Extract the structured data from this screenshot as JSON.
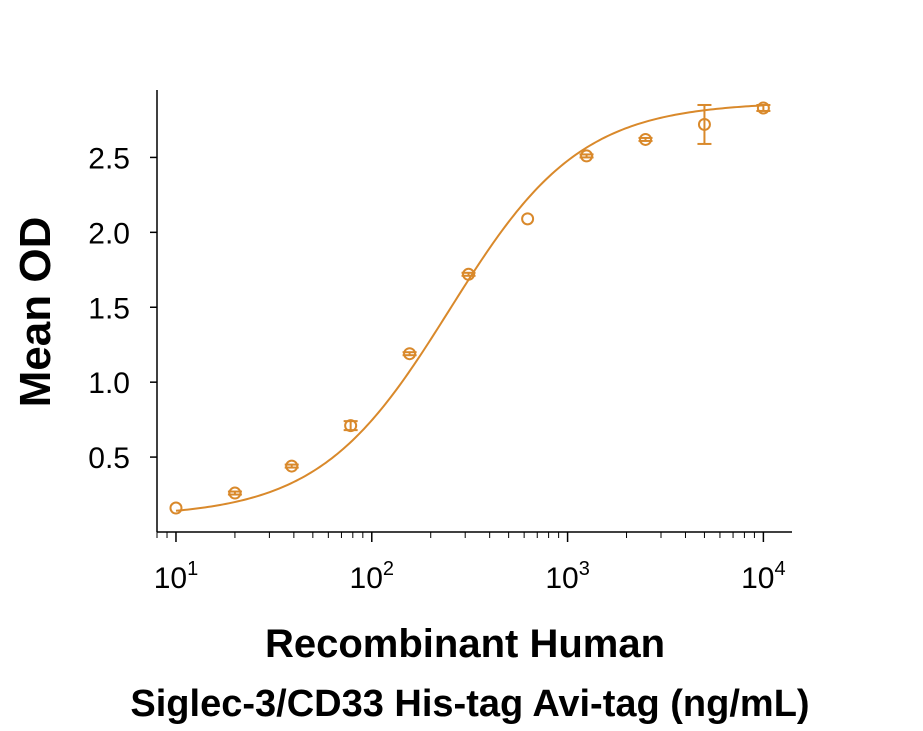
{
  "chart_data": {
    "type": "scatter",
    "x_scale": "log",
    "xlabel_line1": "Recombinant Human",
    "xlabel_line2": "Siglec-3/CD33 His-tag Avi-tag (ng/mL)",
    "ylabel": "Mean OD",
    "xlim": [
      8,
      14000
    ],
    "ylim": [
      0.0,
      2.95
    ],
    "y_ticks": [
      "0.5",
      "1.0",
      "1.5",
      "2.0",
      "2.5"
    ],
    "x_ticks": [
      {
        "base": "10",
        "exp": "1"
      },
      {
        "base": "10",
        "exp": "2"
      },
      {
        "base": "10",
        "exp": "3"
      },
      {
        "base": "10",
        "exp": "4"
      }
    ],
    "grid": false,
    "color": "#D9892B",
    "fit": {
      "model": "4PL",
      "bottom": 0.1,
      "top": 2.87,
      "ec50": 250,
      "hill": 1.3
    },
    "points": [
      {
        "x": 10,
        "y": 0.16,
        "err": 0.0
      },
      {
        "x": 20,
        "y": 0.26,
        "err": 0.01
      },
      {
        "x": 39,
        "y": 0.44,
        "err": 0.01
      },
      {
        "x": 78,
        "y": 0.71,
        "err": 0.03
      },
      {
        "x": 156,
        "y": 1.19,
        "err": 0.01
      },
      {
        "x": 312,
        "y": 1.72,
        "err": 0.01
      },
      {
        "x": 625,
        "y": 2.09,
        "err": 0.0
      },
      {
        "x": 1250,
        "y": 2.51,
        "err": 0.01
      },
      {
        "x": 2500,
        "y": 2.62,
        "err": 0.01
      },
      {
        "x": 5000,
        "y": 2.72,
        "err": 0.13
      },
      {
        "x": 10000,
        "y": 2.83,
        "err": 0.02
      }
    ]
  }
}
